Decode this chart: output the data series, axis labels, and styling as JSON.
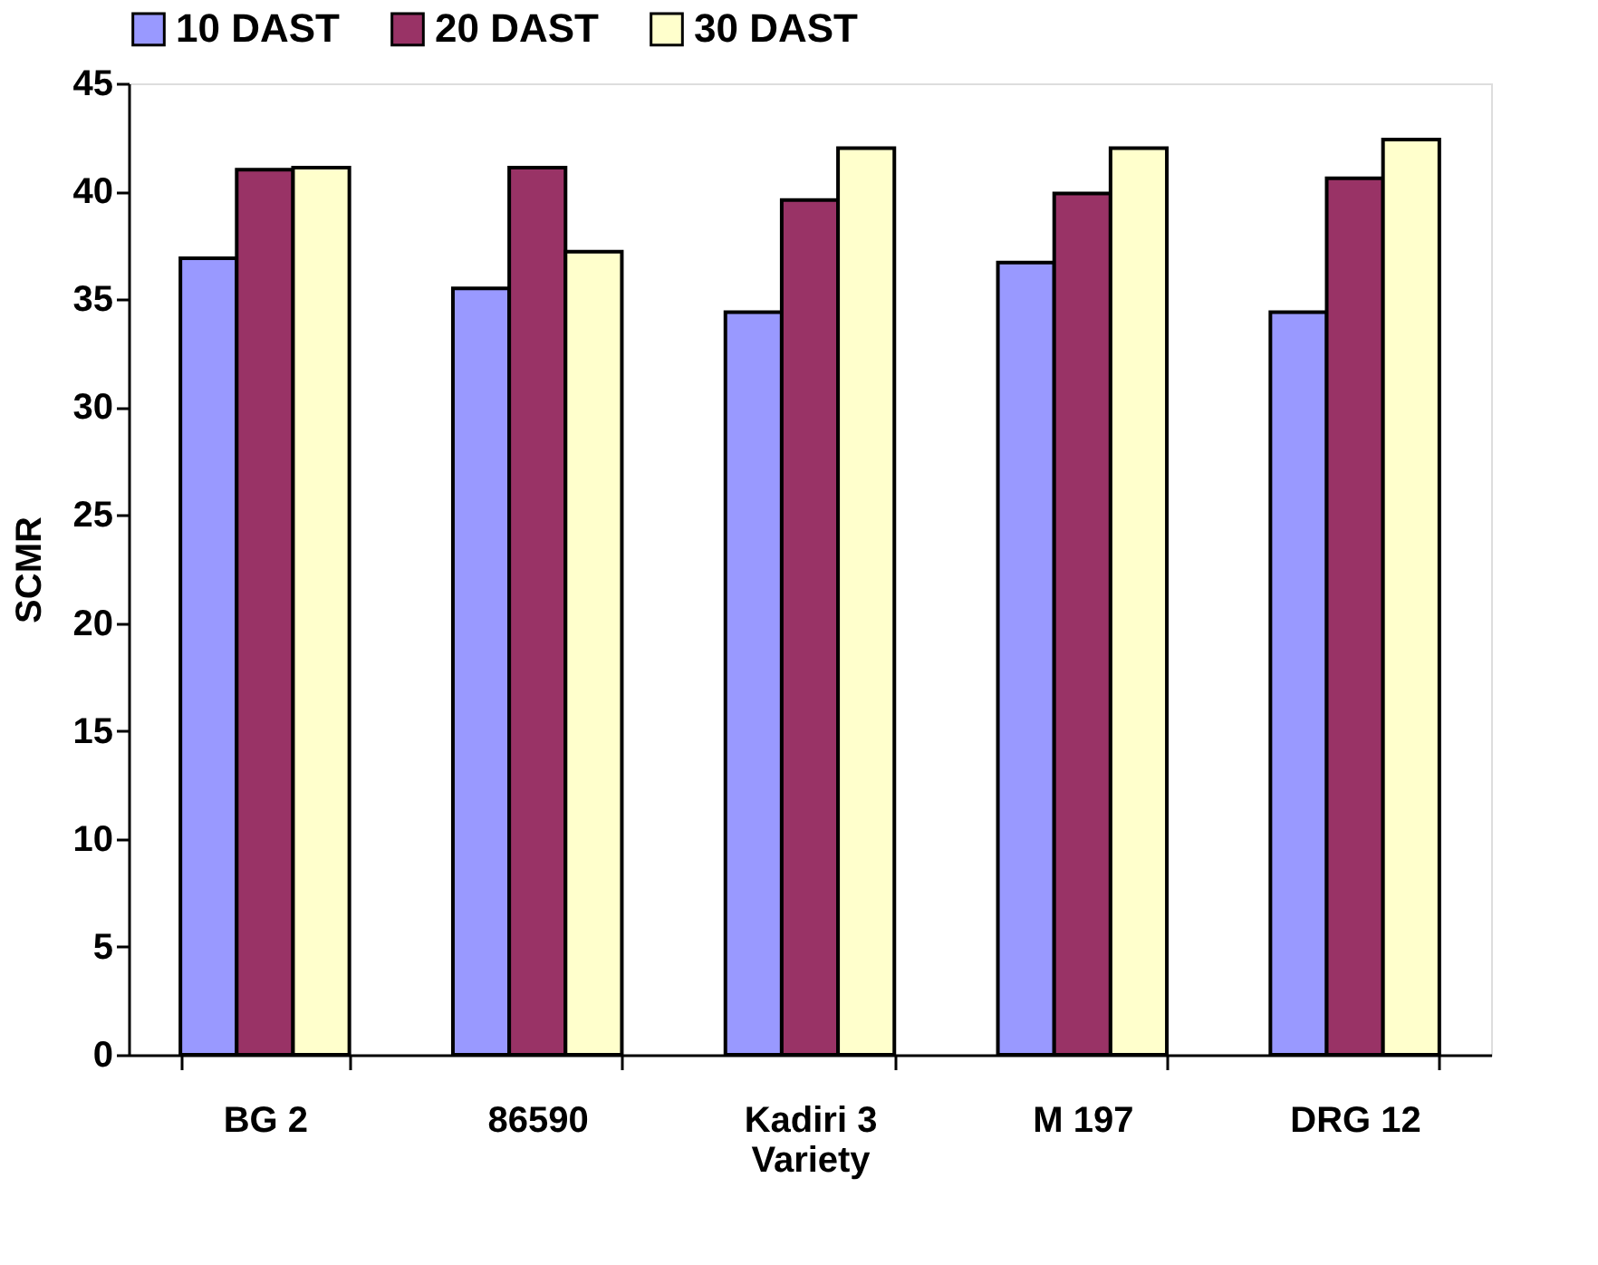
{
  "chart_data": {
    "type": "bar",
    "xlabel": "Variety",
    "ylabel": "SCMR",
    "categories": [
      "BG 2",
      "86590",
      "Kadiri 3",
      "M 197",
      "DRG 12"
    ],
    "series": [
      {
        "name": "10 DAST",
        "color": "#9999ff",
        "values": [
          36.9,
          35.5,
          34.4,
          36.7,
          34.4
        ]
      },
      {
        "name": "20 DAST",
        "color": "#993366",
        "values": [
          41.0,
          41.1,
          39.6,
          39.9,
          40.6
        ]
      },
      {
        "name": "30 DAST",
        "color": "#ffffcc",
        "values": [
          41.1,
          37.2,
          42.0,
          42.0,
          42.4
        ]
      }
    ],
    "ylim": [
      0,
      45
    ],
    "yticks": [
      0,
      5,
      10,
      15,
      20,
      25,
      30,
      35,
      40,
      45
    ],
    "grid": false,
    "legend": "top"
  }
}
